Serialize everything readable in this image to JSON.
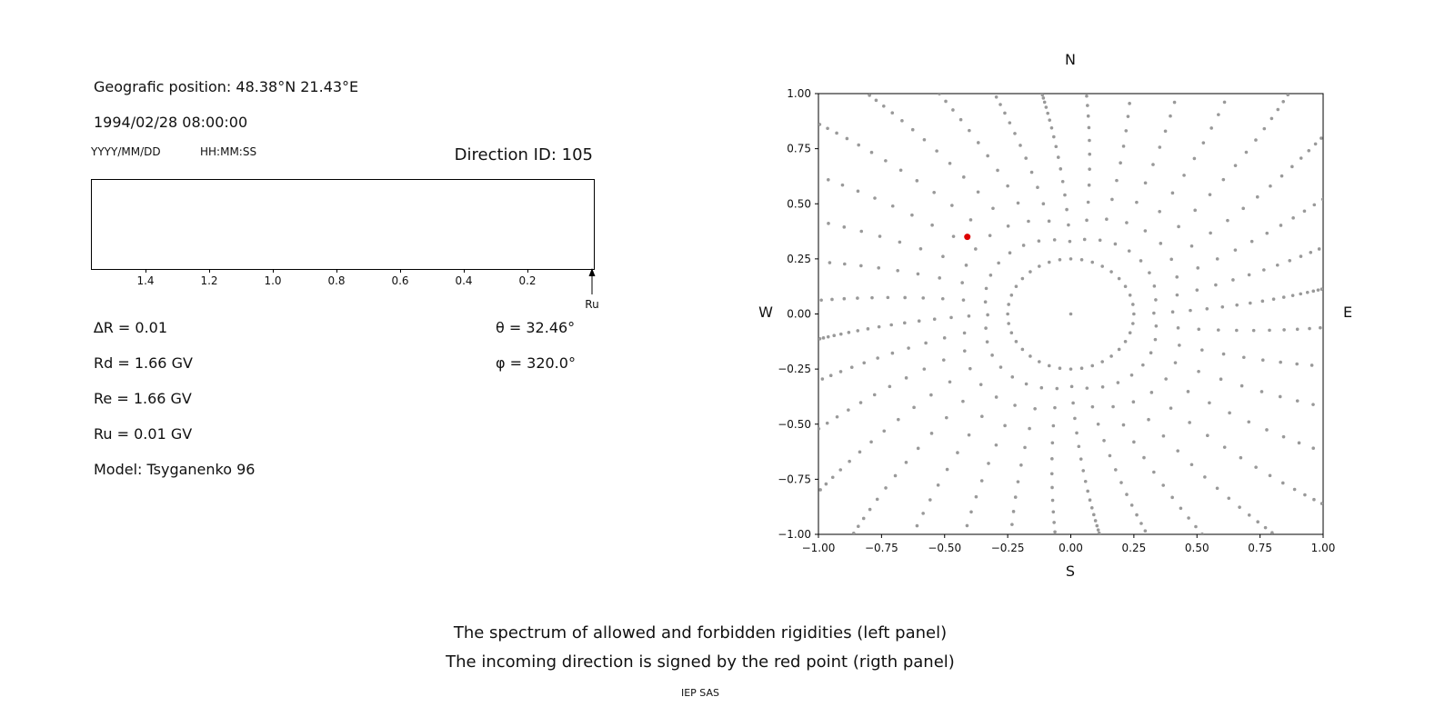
{
  "page": {
    "background": "#ffffff"
  },
  "left_panel": {
    "geographic_position": "Geografic position: 48.38°N 21.43°E",
    "datetime": "1994/02/28 08:00:00",
    "date_format_label": "YYYY/MM/DD",
    "time_format_label": "HH:MM:SS",
    "direction_id_label": "Direction ID: 105",
    "ru_arrow_label": "Ru",
    "parameters_left": [
      "∆R = 0.01",
      "Rd = 1.66 GV",
      "Re = 1.66 GV",
      "Ru = 0.01 GV",
      "Model: Tsyganenko 96"
    ],
    "parameters_right": [
      "θ = 32.46°",
      "φ = 320.0°"
    ]
  },
  "right_panel": {
    "compass_labels": {
      "top": "N",
      "bottom": "S",
      "left": "W",
      "right": "E"
    }
  },
  "footer": {
    "caption_line1": "The spectrum of allowed and forbidden rigidities (left panel)",
    "caption_line2": "The incoming direction is signed by the red point (rigth panel)",
    "credit": "IEP SAS"
  },
  "chart_data": [
    {
      "type": "bar",
      "panel": "left-spectrum",
      "x_tick_labels": [
        "1.4",
        "1.2",
        "1.0",
        "0.8",
        "0.6",
        "0.4",
        "0.2"
      ],
      "x_axis_reversed": true,
      "values": [],
      "annotation_arrow": {
        "label": "Ru",
        "position": "right-edge",
        "direction": "up"
      }
    },
    {
      "type": "scatter",
      "panel": "right-direction-map",
      "xlim": [
        -1.0,
        1.0
      ],
      "ylim": [
        -1.0,
        1.0
      ],
      "x_tick_labels": [
        "−1.00",
        "−0.75",
        "−0.50",
        "−0.25",
        "0.00",
        "0.25",
        "0.50",
        "0.75",
        "1.00"
      ],
      "y_tick_labels": [
        "1.00",
        "0.75",
        "0.50",
        "0.25",
        "0.00",
        "−0.25",
        "−0.50",
        "−0.75",
        "−1.00"
      ],
      "compass": {
        "top": "N",
        "bottom": "S",
        "left": "W",
        "right": "E"
      },
      "gray_points": {
        "color": "#999999",
        "marker_radius_px": 1.8,
        "ray_count": 36,
        "ray_azimuth_step_deg": 10,
        "ray_inner_radius": 0.25,
        "ray_outer_radius_min": 1.02,
        "ray_outer_radius_max": 1.4,
        "ray_curvature_rad_per_unit": 0.15,
        "radial_fractions": [
          0,
          0.103,
          0.2,
          0.291,
          0.377,
          0.457,
          0.532,
          0.601,
          0.665,
          0.723,
          0.776,
          0.823,
          0.864,
          0.9,
          0.931,
          0.956,
          0.975,
          0.989,
          0.997,
          1
        ],
        "center_point": [
          0,
          0
        ]
      },
      "red_point": {
        "x": -0.41,
        "y": 0.35,
        "color": "#dd0000",
        "marker_radius_px": 3.5
      }
    }
  ]
}
